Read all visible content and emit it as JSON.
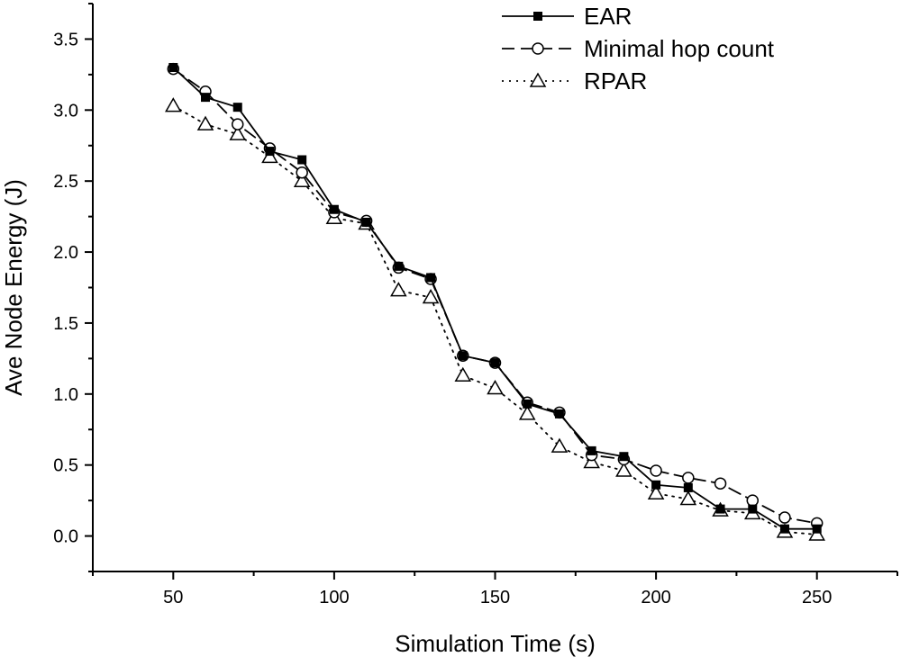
{
  "chart_data": {
    "type": "line",
    "title": "",
    "xlabel": "Simulation Time (s)",
    "ylabel": "Ave Node Energy (J)",
    "xlim": [
      25,
      275
    ],
    "ylim": [
      -0.25,
      3.75
    ],
    "xticks": [
      50,
      100,
      150,
      200,
      250
    ],
    "xtick_labels": [
      "50",
      "100",
      "150",
      "200",
      "250"
    ],
    "yticks": [
      0.0,
      0.5,
      1.0,
      1.5,
      2.0,
      2.5,
      3.0,
      3.5
    ],
    "ytick_labels": [
      "0.0",
      "0.5",
      "1.0",
      "1.5",
      "2.0",
      "2.5",
      "3.0",
      "3.5"
    ],
    "grid": false,
    "legend_position": "top-right",
    "x": [
      50,
      60,
      70,
      80,
      90,
      100,
      110,
      120,
      130,
      140,
      150,
      160,
      170,
      180,
      190,
      200,
      210,
      220,
      230,
      240,
      250
    ],
    "series": [
      {
        "name": "EAR",
        "marker": "filled-square",
        "line_style": "solid",
        "values": [
          3.3,
          3.09,
          3.02,
          2.71,
          2.65,
          2.3,
          2.21,
          1.9,
          1.82,
          1.27,
          1.22,
          0.93,
          0.86,
          0.6,
          0.56,
          0.36,
          0.34,
          0.19,
          0.19,
          0.05,
          0.05
        ]
      },
      {
        "name": "Minimal hop count",
        "marker": "open-circle",
        "line_style": "dashed",
        "values": [
          3.29,
          3.13,
          2.9,
          2.73,
          2.56,
          2.28,
          2.22,
          1.89,
          1.81,
          1.27,
          1.22,
          0.94,
          0.87,
          0.57,
          0.54,
          0.46,
          0.41,
          0.37,
          0.25,
          0.13,
          0.09
        ]
      },
      {
        "name": "RPAR",
        "marker": "open-triangle",
        "line_style": "dotted",
        "values": [
          3.03,
          2.9,
          2.83,
          2.67,
          2.5,
          2.24,
          2.2,
          1.73,
          1.68,
          1.13,
          1.04,
          0.86,
          0.63,
          0.52,
          0.46,
          0.3,
          0.26,
          0.18,
          0.16,
          0.03,
          0.01
        ]
      }
    ]
  }
}
